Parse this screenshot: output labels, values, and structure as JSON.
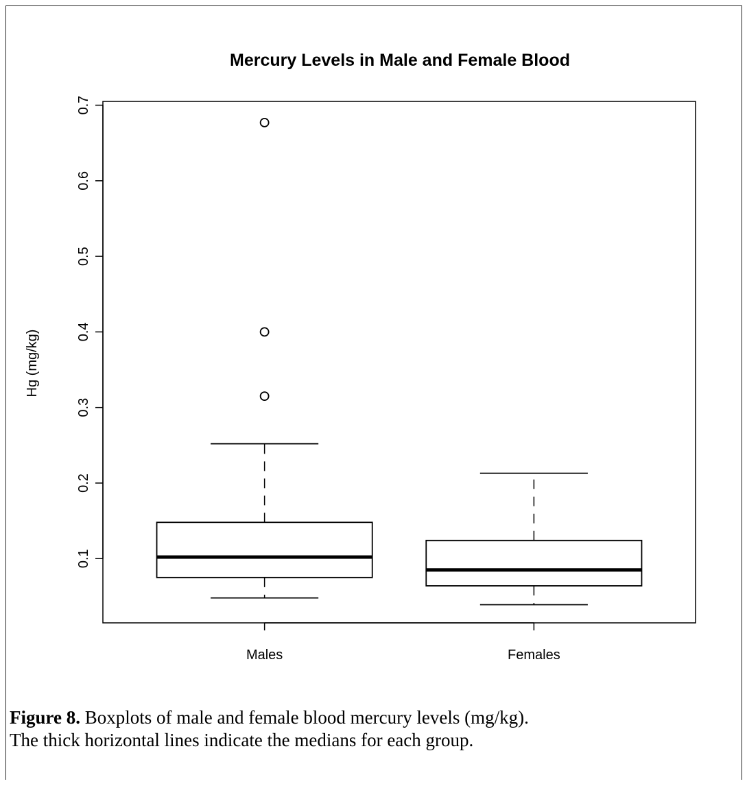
{
  "chart_data": {
    "type": "box",
    "title": "Mercury Levels in Male and Female Blood",
    "xlabel": "",
    "ylabel": "Hg (mg/kg)",
    "ylim": [
      0.015,
      0.705
    ],
    "yticks": [
      "0.1",
      "0.2",
      "0.3",
      "0.4",
      "0.5",
      "0.6",
      "0.7"
    ],
    "categories": [
      "Males",
      "Females"
    ],
    "boxes": [
      {
        "category": "Males",
        "whisker_low": 0.048,
        "q1": 0.075,
        "median": 0.102,
        "q3": 0.148,
        "whisker_high": 0.252,
        "outliers": [
          0.315,
          0.4,
          0.677
        ]
      },
      {
        "category": "Females",
        "whisker_low": 0.039,
        "q1": 0.064,
        "median": 0.085,
        "q3": 0.124,
        "whisker_high": 0.213,
        "outliers": []
      }
    ],
    "grid": false,
    "legend": "none",
    "colors": {
      "box": "#ffffff",
      "line": "#000000"
    }
  },
  "caption": {
    "label": "Figure 8.",
    "line1": " Boxplots of male and female blood mercury levels (mg/kg).",
    "line2": "The thick horizontal lines indicate the medians for each group."
  }
}
